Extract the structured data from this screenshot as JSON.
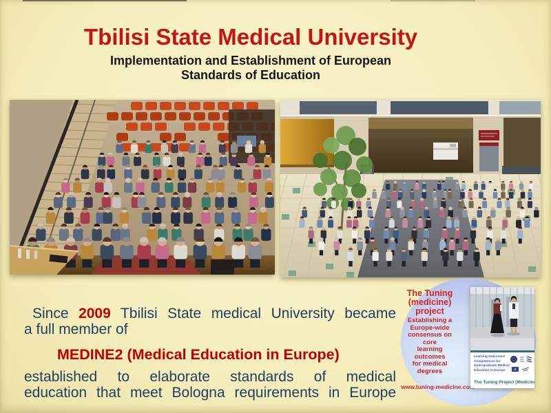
{
  "header": {
    "title": "Tbilisi State Medical University",
    "subtitle_line1": "Implementation and Establishment of European",
    "subtitle_line2": "Standards of Education"
  },
  "body": {
    "line1_pre": "Since",
    "line1_year": "2009",
    "line1_post": "Tbilisi State medical University became",
    "line2": "a full member of",
    "medine_line": "MEDINE2 (Medical Education in Europe)",
    "line4": "established to elaborate standards of medical",
    "line5": "education that meet Bologna requirements in Europe"
  },
  "tuning_badge": {
    "title_line1": "The Tuning",
    "title_line2": "(medicine)",
    "title_line3": "project",
    "tagline_lines": [
      "Establishing a",
      "Europe-wide",
      "consensus on core",
      "learning outcomes",
      "for medical",
      "degrees"
    ],
    "url": "www.tuning-medicine.com"
  },
  "brochure": {
    "caption_lines": [
      "Learning Outcomes/",
      "Competences for",
      "Undergraduate Medical",
      "Education in Europe"
    ],
    "footer": "The Tuning Project (Medicine"
  },
  "colors": {
    "title_red": "#c41414",
    "body_navy": "#1f3e60",
    "accent_red": "#c00000",
    "badge_red": "#d22424",
    "background_cream": "#f6efc2"
  }
}
